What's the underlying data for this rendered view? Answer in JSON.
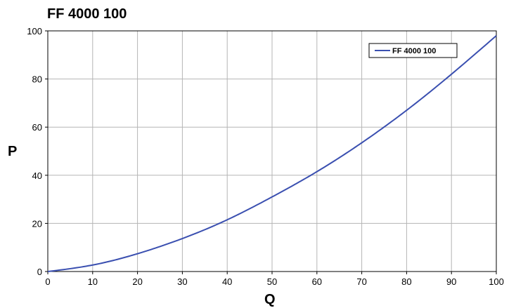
{
  "chart_data": {
    "type": "line",
    "title": "FF 4000 100",
    "xlabel": "Q",
    "ylabel": "P",
    "xlim": [
      0,
      100
    ],
    "ylim": [
      0,
      100
    ],
    "xticks": [
      0,
      10,
      20,
      30,
      40,
      50,
      60,
      70,
      80,
      90,
      100
    ],
    "yticks": [
      0,
      20,
      40,
      60,
      80,
      100
    ],
    "grid": true,
    "legend_position": "top-right",
    "series": [
      {
        "name": "FF 4000 100",
        "color": "#3a4fb0",
        "x": [
          0,
          10,
          20,
          30,
          40,
          50,
          60,
          70,
          80,
          90,
          100
        ],
        "y": [
          0,
          2.7,
          7.4,
          13.7,
          21.5,
          31,
          41.5,
          53.5,
          67,
          82,
          98
        ]
      }
    ]
  }
}
